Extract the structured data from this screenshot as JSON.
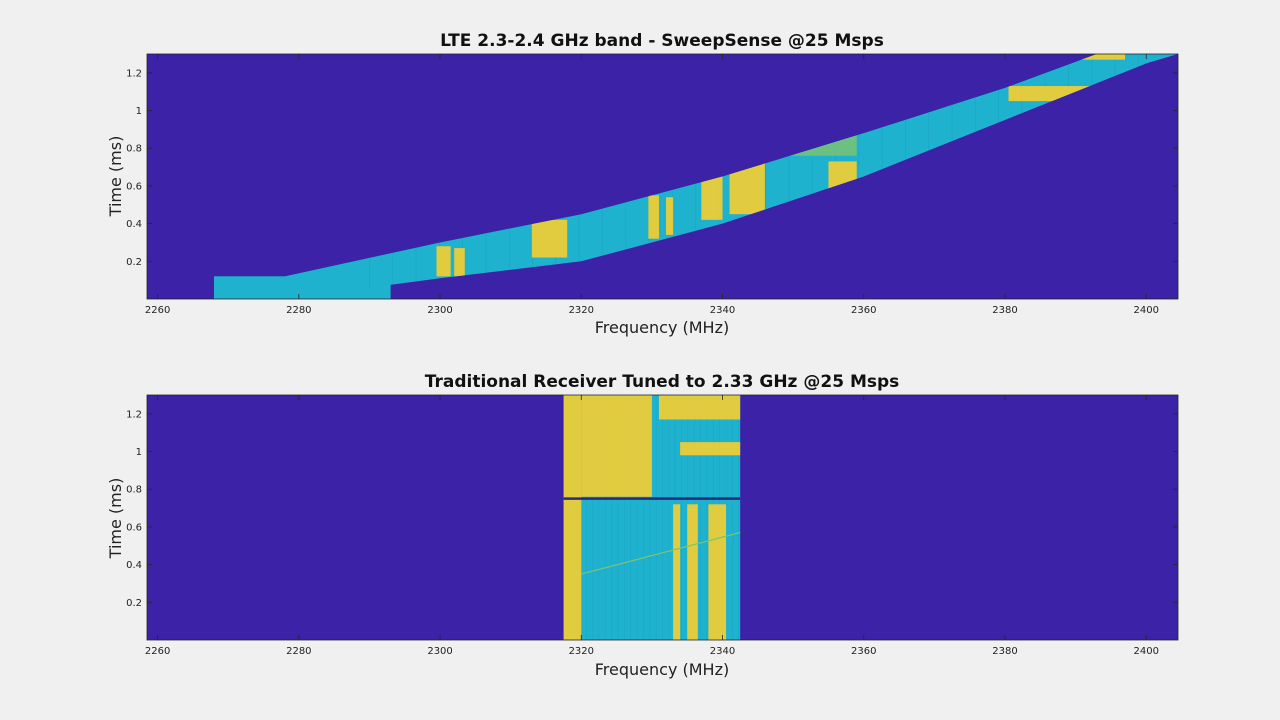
{
  "colors": {
    "background": "#f0f0f0",
    "noise_floor": "#3b22a6",
    "band_cyan": "#1fb2cf",
    "band_cyan_dark": "#18a0c0",
    "signal_yellow": "#f2cd33",
    "signal_green": "#7ec36e"
  },
  "chart_data": [
    {
      "type": "heatmap",
      "title": "LTE 2.3-2.4 GHz band - SweepSense @25 Msps",
      "xlabel": "Frequency (MHz)",
      "ylabel": "Time (ms)",
      "xlim": [
        2258.5,
        2404.5
      ],
      "ylim": [
        0,
        1.3
      ],
      "xticks": [
        2260,
        2280,
        2300,
        2320,
        2340,
        2360,
        2380,
        2400
      ],
      "xtick_labels": [
        "2260",
        "2280",
        "2300",
        "2320",
        "2340",
        "2360",
        "2380",
        "2400"
      ],
      "yticks": [
        0.2,
        0.4,
        0.6,
        0.8,
        1,
        1.2
      ],
      "ytick_labels": [
        "0.2",
        "0.4",
        "0.6",
        "0.8",
        "1",
        "1.2"
      ],
      "colormap": "parula",
      "sweep_band": {
        "lower_edge": [
          [
            2268,
            0
          ],
          [
            2290,
            0.06
          ],
          [
            2300,
            0.11
          ],
          [
            2320,
            0.2
          ],
          [
            2340,
            0.4
          ],
          [
            2360,
            0.65
          ],
          [
            2380,
            0.95
          ],
          [
            2400,
            1.25
          ],
          [
            2404.5,
            1.3
          ]
        ],
        "upper_edge": [
          [
            2268,
            0.12
          ],
          [
            2278,
            0.12
          ],
          [
            2300,
            0.3
          ],
          [
            2320,
            0.45
          ],
          [
            2340,
            0.65
          ],
          [
            2360,
            0.88
          ],
          [
            2380,
            1.12
          ],
          [
            2393,
            1.3
          ]
        ],
        "start_block": {
          "x": [
            2268,
            2293
          ],
          "y": [
            0,
            0.12
          ]
        }
      },
      "signals": [
        {
          "x": [
            2299.5,
            2301.5
          ],
          "y": [
            0.12,
            0.28
          ]
        },
        {
          "x": [
            2302,
            2303.5
          ],
          "y": [
            0.12,
            0.27
          ]
        },
        {
          "x": [
            2313,
            2318
          ],
          "y": [
            0.22,
            0.42
          ]
        },
        {
          "x": [
            2329.5,
            2331
          ],
          "y": [
            0.32,
            0.55
          ]
        },
        {
          "x": [
            2332,
            2333
          ],
          "y": [
            0.34,
            0.54
          ]
        },
        {
          "x": [
            2337,
            2340
          ],
          "y": [
            0.42,
            0.67
          ]
        },
        {
          "x": [
            2341,
            2346
          ],
          "y": [
            0.45,
            0.73
          ]
        },
        {
          "x": [
            2355,
            2359
          ],
          "y": [
            0.58,
            0.73
          ]
        },
        {
          "x": [
            2380.5,
            2395
          ],
          "y": [
            1.05,
            1.13
          ]
        },
        {
          "x": [
            2380.5,
            2397
          ],
          "y": [
            1.27,
            1.3
          ]
        }
      ]
    },
    {
      "type": "heatmap",
      "title": "Traditional Receiver Tuned to 2.33 GHz @25 Msps",
      "xlabel": "Frequency (MHz)",
      "ylabel": "Time (ms)",
      "xlim": [
        2258.5,
        2404.5
      ],
      "ylim": [
        0,
        1.3
      ],
      "xticks": [
        2260,
        2280,
        2300,
        2320,
        2340,
        2360,
        2380,
        2400
      ],
      "xtick_labels": [
        "2260",
        "2280",
        "2300",
        "2320",
        "2340",
        "2360",
        "2380",
        "2400"
      ],
      "yticks": [
        0.2,
        0.4,
        0.6,
        0.8,
        1,
        1.2
      ],
      "ytick_labels": [
        "0.2",
        "0.4",
        "0.6",
        "0.8",
        "1",
        "1.2"
      ],
      "colormap": "parula",
      "capture_band": {
        "x": [
          2317.5,
          2342.5
        ],
        "y": [
          0,
          1.3
        ],
        "gap_at": 0.75
      },
      "signals": [
        {
          "x": [
            2317.5,
            2320
          ],
          "y": [
            0,
            1.3
          ]
        },
        {
          "x": [
            2320,
            2330
          ],
          "y": [
            0.76,
            1.3
          ]
        },
        {
          "x": [
            2335,
            2336.5
          ],
          "y": [
            0,
            0.72
          ]
        },
        {
          "x": [
            2338,
            2340.5
          ],
          "y": [
            0,
            0.72
          ]
        },
        {
          "x": [
            2331,
            2342.5
          ],
          "y": [
            1.17,
            1.3
          ]
        },
        {
          "x": [
            2334,
            2342.5
          ],
          "y": [
            0.98,
            1.05
          ]
        },
        {
          "x": [
            2333,
            2334
          ],
          "y": [
            0,
            0.72
          ]
        }
      ]
    }
  ]
}
